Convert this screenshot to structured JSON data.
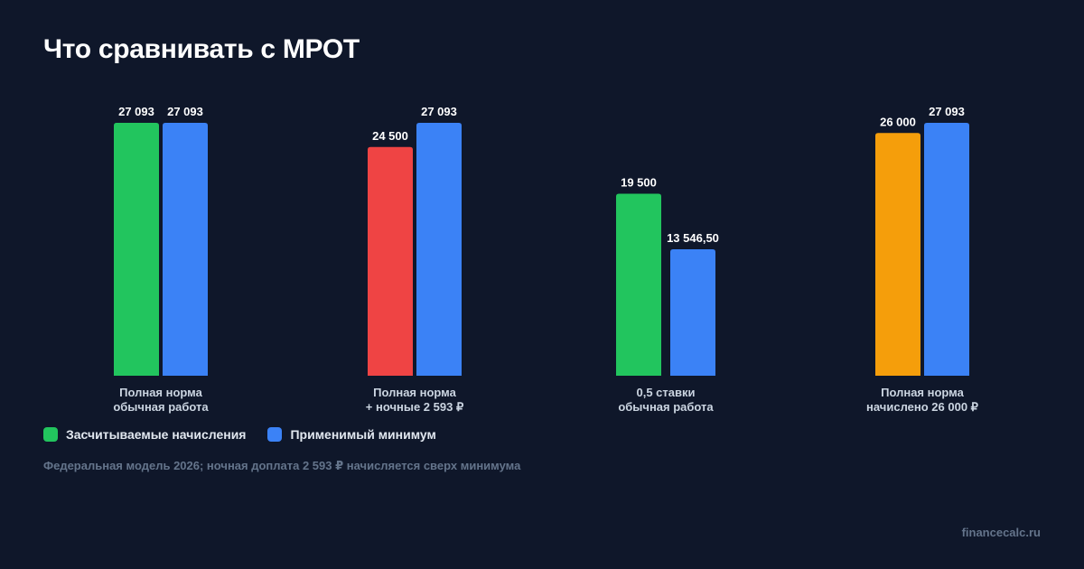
{
  "title": "Что сравнивать с МРОТ",
  "legend": {
    "credited_label": "Засчитываемые начисления",
    "minimum_label": "Применимый минимум"
  },
  "footnote": "Федеральная модель 2026; ночная доплата 2 593 ₽ начисляется сверх минимума",
  "brand": "financecalc.ru",
  "colors": {
    "background": "#0f172a",
    "green": "#22c55e",
    "red": "#ef4444",
    "orange": "#f59e0b",
    "blue": "#3b82f6"
  },
  "chart_data": {
    "type": "bar",
    "categories": [
      [
        "Полная норма",
        "обычная работа"
      ],
      [
        "Полная норма",
        "+ ночные 2 593 ₽"
      ],
      [
        "0,5 ставки",
        "обычная работа"
      ],
      [
        "Полная норма",
        "начислено 26 000 ₽"
      ]
    ],
    "series": [
      {
        "name": "Засчитываемые начисления",
        "values": [
          27093,
          24500,
          19500,
          26000
        ],
        "labels": [
          "27 093",
          "24 500",
          "19 500",
          "26 000"
        ],
        "colors": [
          "#22c55e",
          "#ef4444",
          "#22c55e",
          "#f59e0b"
        ]
      },
      {
        "name": "Применимый минимум",
        "values": [
          27093,
          27093,
          13546.5,
          27093
        ],
        "labels": [
          "27 093",
          "27 093",
          "13 546,50",
          "27 093"
        ],
        "colors": [
          "#3b82f6",
          "#3b82f6",
          "#3b82f6",
          "#3b82f6"
        ]
      }
    ],
    "ylim": [
      0,
      27093
    ],
    "grid": false,
    "legend_position": "bottom-left"
  }
}
